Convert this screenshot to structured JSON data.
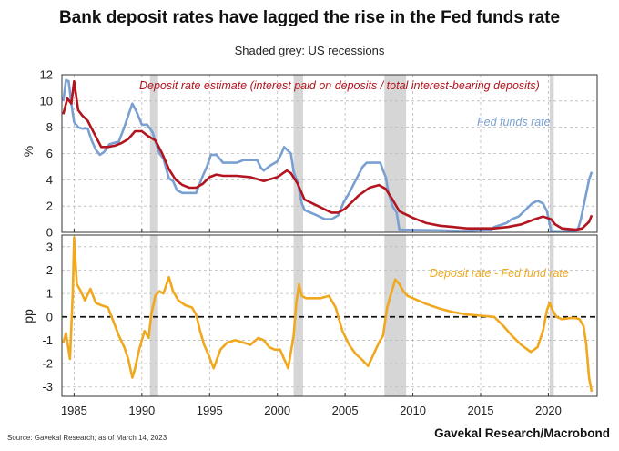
{
  "title": "Bank deposit rates have lagged the rise in the Fed funds rate",
  "subtitle": "Shaded grey: US recessions",
  "source": "Source: Gavekal Research; as of March 14, 2023",
  "brand": "Gavekal Research/Macrobond",
  "colors": {
    "fed": "#7aa0d2",
    "deposit": "#b2151f",
    "spread": "#f0a81e",
    "recession": "#d6d6d6",
    "grid": "#b9b9b9"
  },
  "chart_data": [
    {
      "type": "line",
      "ylabel": "%",
      "ylim": [
        0,
        12
      ],
      "yticks": [
        0,
        2,
        4,
        6,
        8,
        10,
        12
      ],
      "xlim": [
        1984.1,
        2023.6
      ],
      "xticks": [
        1985,
        1990,
        1995,
        2000,
        2005,
        2010,
        2015,
        2020
      ],
      "grid": true,
      "recessions": [
        [
          1990.6,
          1991.2
        ],
        [
          2001.2,
          2001.9
        ],
        [
          2007.9,
          2009.5
        ],
        [
          2020.1,
          2020.4
        ]
      ],
      "series": [
        {
          "name": "Fed funds rate",
          "x": [
            1984.2,
            1984.4,
            1984.6,
            1984.8,
            1985.0,
            1985.3,
            1985.6,
            1986.0,
            1986.3,
            1986.6,
            1986.9,
            1987.2,
            1987.6,
            1987.9,
            1988.3,
            1988.7,
            1989.0,
            1989.3,
            1989.6,
            1990.0,
            1990.4,
            1990.8,
            1991.0,
            1991.3,
            1991.6,
            1992.0,
            1992.3,
            1992.6,
            1993.0,
            1993.5,
            1994.0,
            1994.2,
            1994.5,
            1994.8,
            1995.1,
            1995.5,
            1996.0,
            1996.5,
            1997.0,
            1997.5,
            1998.0,
            1998.5,
            1998.8,
            1999.0,
            1999.5,
            2000.0,
            2000.3,
            2000.5,
            2001.0,
            2001.2,
            2001.5,
            2001.8,
            2002.0,
            2002.9,
            2003.5,
            2004.0,
            2004.5,
            2004.9,
            2005.3,
            2005.8,
            2006.3,
            2006.6,
            2007.0,
            2007.6,
            2007.8,
            2008.0,
            2008.2,
            2008.5,
            2008.8,
            2009.0,
            2010.0,
            2012.0,
            2014.0,
            2015.8,
            2016.0,
            2016.9,
            2017.3,
            2017.8,
            2018.3,
            2018.8,
            2019.2,
            2019.6,
            2019.9,
            2020.2,
            2020.3,
            2021.0,
            2022.0,
            2022.2,
            2022.4,
            2022.6,
            2022.8,
            2023.0,
            2023.2
          ],
          "y": [
            10.0,
            11.6,
            11.5,
            9.8,
            8.4,
            8.0,
            7.9,
            7.9,
            7.0,
            6.3,
            5.9,
            6.1,
            6.7,
            6.8,
            6.9,
            8.0,
            8.9,
            9.8,
            9.2,
            8.2,
            8.2,
            7.6,
            6.9,
            6.0,
            5.6,
            4.1,
            3.9,
            3.2,
            3.0,
            3.0,
            3.0,
            3.5,
            4.3,
            5.0,
            5.9,
            5.9,
            5.3,
            5.3,
            5.3,
            5.5,
            5.5,
            5.5,
            4.9,
            4.7,
            5.1,
            5.4,
            6.0,
            6.5,
            6.0,
            4.6,
            3.8,
            2.2,
            1.7,
            1.3,
            1.0,
            1.0,
            1.3,
            2.3,
            3.0,
            4.0,
            5.0,
            5.3,
            5.3,
            5.3,
            4.7,
            4.2,
            3.0,
            2.0,
            1.5,
            0.2,
            0.18,
            0.15,
            0.1,
            0.2,
            0.4,
            0.7,
            1.0,
            1.2,
            1.7,
            2.2,
            2.4,
            2.2,
            1.6,
            0.1,
            0.08,
            0.08,
            0.08,
            0.3,
            1.0,
            2.0,
            3.0,
            4.0,
            4.6
          ]
        },
        {
          "name": "Deposit rate estimate (interest paid on deposits / total interest-bearing deposits)",
          "x": [
            1984.2,
            1984.5,
            1984.8,
            1985.0,
            1985.3,
            1985.6,
            1986.0,
            1986.5,
            1987.0,
            1987.5,
            1988.0,
            1988.5,
            1989.0,
            1989.5,
            1990.0,
            1990.5,
            1991.0,
            1991.5,
            1992.0,
            1992.5,
            1993.0,
            1993.5,
            1994.0,
            1994.5,
            1995.0,
            1995.5,
            1996.0,
            1997.0,
            1998.0,
            1999.0,
            2000.0,
            2000.7,
            2001.0,
            2001.5,
            2002.0,
            2003.0,
            2004.0,
            2004.5,
            2005.0,
            2006.0,
            2006.8,
            2007.5,
            2008.0,
            2008.5,
            2009.0,
            2010.0,
            2011.0,
            2012.0,
            2013.0,
            2014.0,
            2015.0,
            2016.0,
            2017.0,
            2018.0,
            2019.0,
            2019.6,
            2020.2,
            2020.5,
            2021.0,
            2022.0,
            2022.5,
            2023.0,
            2023.2
          ],
          "y": [
            9.0,
            10.2,
            9.8,
            11.5,
            9.3,
            8.9,
            8.5,
            7.5,
            6.5,
            6.5,
            6.6,
            6.8,
            7.1,
            7.7,
            7.7,
            7.3,
            7.0,
            6.0,
            4.8,
            4.0,
            3.6,
            3.4,
            3.4,
            3.7,
            4.2,
            4.4,
            4.3,
            4.3,
            4.2,
            3.9,
            4.2,
            4.7,
            4.5,
            3.7,
            2.5,
            2.0,
            1.5,
            1.5,
            1.8,
            2.8,
            3.4,
            3.6,
            3.3,
            2.5,
            1.6,
            1.1,
            0.7,
            0.5,
            0.4,
            0.3,
            0.3,
            0.3,
            0.4,
            0.6,
            1.0,
            1.2,
            1.0,
            0.6,
            0.3,
            0.2,
            0.3,
            0.8,
            1.3
          ]
        }
      ],
      "annotations": [
        {
          "text": "Deposit rate estimate (interest paid on deposits / total interest-bearing deposits)",
          "series": "deposit"
        },
        {
          "text": "Fed funds rate",
          "series": "fed"
        }
      ]
    },
    {
      "type": "line",
      "ylabel": "pp",
      "ylim": [
        -3.4,
        3.5
      ],
      "yticks": [
        -3,
        -2,
        -1,
        0,
        1,
        2,
        3
      ],
      "xlim": [
        1984.1,
        2023.6
      ],
      "xticks": [
        1985,
        1990,
        1995,
        2000,
        2005,
        2010,
        2015,
        2020
      ],
      "grid": true,
      "zero_line": "dashed",
      "recessions": [
        [
          1990.6,
          1991.2
        ],
        [
          2001.2,
          2001.9
        ],
        [
          2007.9,
          2009.5
        ],
        [
          2020.1,
          2020.4
        ]
      ],
      "series": [
        {
          "name": "Deposit rate - Fed fund rate",
          "x": [
            1984.2,
            1984.4,
            1984.7,
            1984.9,
            1985.0,
            1985.2,
            1985.5,
            1985.8,
            1986.2,
            1986.6,
            1987.0,
            1987.5,
            1987.9,
            1988.3,
            1988.7,
            1989.0,
            1989.3,
            1989.5,
            1989.8,
            1990.2,
            1990.5,
            1990.7,
            1991.0,
            1991.3,
            1991.6,
            1992.0,
            1992.3,
            1992.7,
            1993.2,
            1993.7,
            1994.0,
            1994.3,
            1994.6,
            1994.9,
            1995.3,
            1995.8,
            1996.3,
            1996.9,
            1997.5,
            1998.0,
            1998.6,
            1999.0,
            1999.4,
            1999.8,
            2000.2,
            2000.5,
            2000.8,
            2001.2,
            2001.4,
            2001.6,
            2001.8,
            2002.1,
            2002.6,
            2003.2,
            2003.8,
            2004.3,
            2004.8,
            2005.3,
            2005.8,
            2006.2,
            2006.7,
            2007.1,
            2007.5,
            2007.8,
            2008.1,
            2008.4,
            2008.7,
            2009.0,
            2009.3,
            2009.6,
            2010.0,
            2011.0,
            2012.0,
            2013.0,
            2014.0,
            2015.0,
            2016.0,
            2016.7,
            2017.3,
            2018.0,
            2018.7,
            2019.2,
            2019.6,
            2019.9,
            2020.1,
            2020.3,
            2020.6,
            2021.0,
            2021.6,
            2022.0,
            2022.3,
            2022.6,
            2022.8,
            2023.0,
            2023.2
          ],
          "y": [
            -1.1,
            -0.7,
            -1.8,
            1.0,
            3.4,
            1.4,
            1.1,
            0.7,
            1.2,
            0.6,
            0.5,
            0.4,
            -0.2,
            -0.8,
            -1.3,
            -1.8,
            -2.6,
            -2.2,
            -1.4,
            -0.6,
            -0.9,
            0.1,
            0.9,
            1.1,
            1.0,
            1.7,
            1.1,
            0.7,
            0.5,
            0.4,
            0.1,
            -0.6,
            -1.2,
            -1.6,
            -2.2,
            -1.4,
            -1.1,
            -1.0,
            -1.1,
            -1.2,
            -0.9,
            -1.0,
            -1.3,
            -1.4,
            -1.4,
            -1.8,
            -2.2,
            -0.8,
            0.6,
            1.4,
            0.9,
            0.8,
            0.8,
            0.8,
            0.9,
            0.4,
            -0.6,
            -1.2,
            -1.6,
            -1.8,
            -2.1,
            -1.6,
            -1.1,
            -0.8,
            0.4,
            1.0,
            1.6,
            1.4,
            1.1,
            0.9,
            0.8,
            0.55,
            0.35,
            0.2,
            0.1,
            0.05,
            0.0,
            -0.4,
            -0.8,
            -1.2,
            -1.5,
            -1.3,
            -0.6,
            0.3,
            0.6,
            0.3,
            0.0,
            -0.1,
            -0.05,
            -0.05,
            -0.1,
            -0.4,
            -1.2,
            -2.6,
            -3.2
          ]
        }
      ],
      "annotations": [
        {
          "text": "Deposit rate - Fed fund rate",
          "series": "spread"
        }
      ]
    }
  ]
}
